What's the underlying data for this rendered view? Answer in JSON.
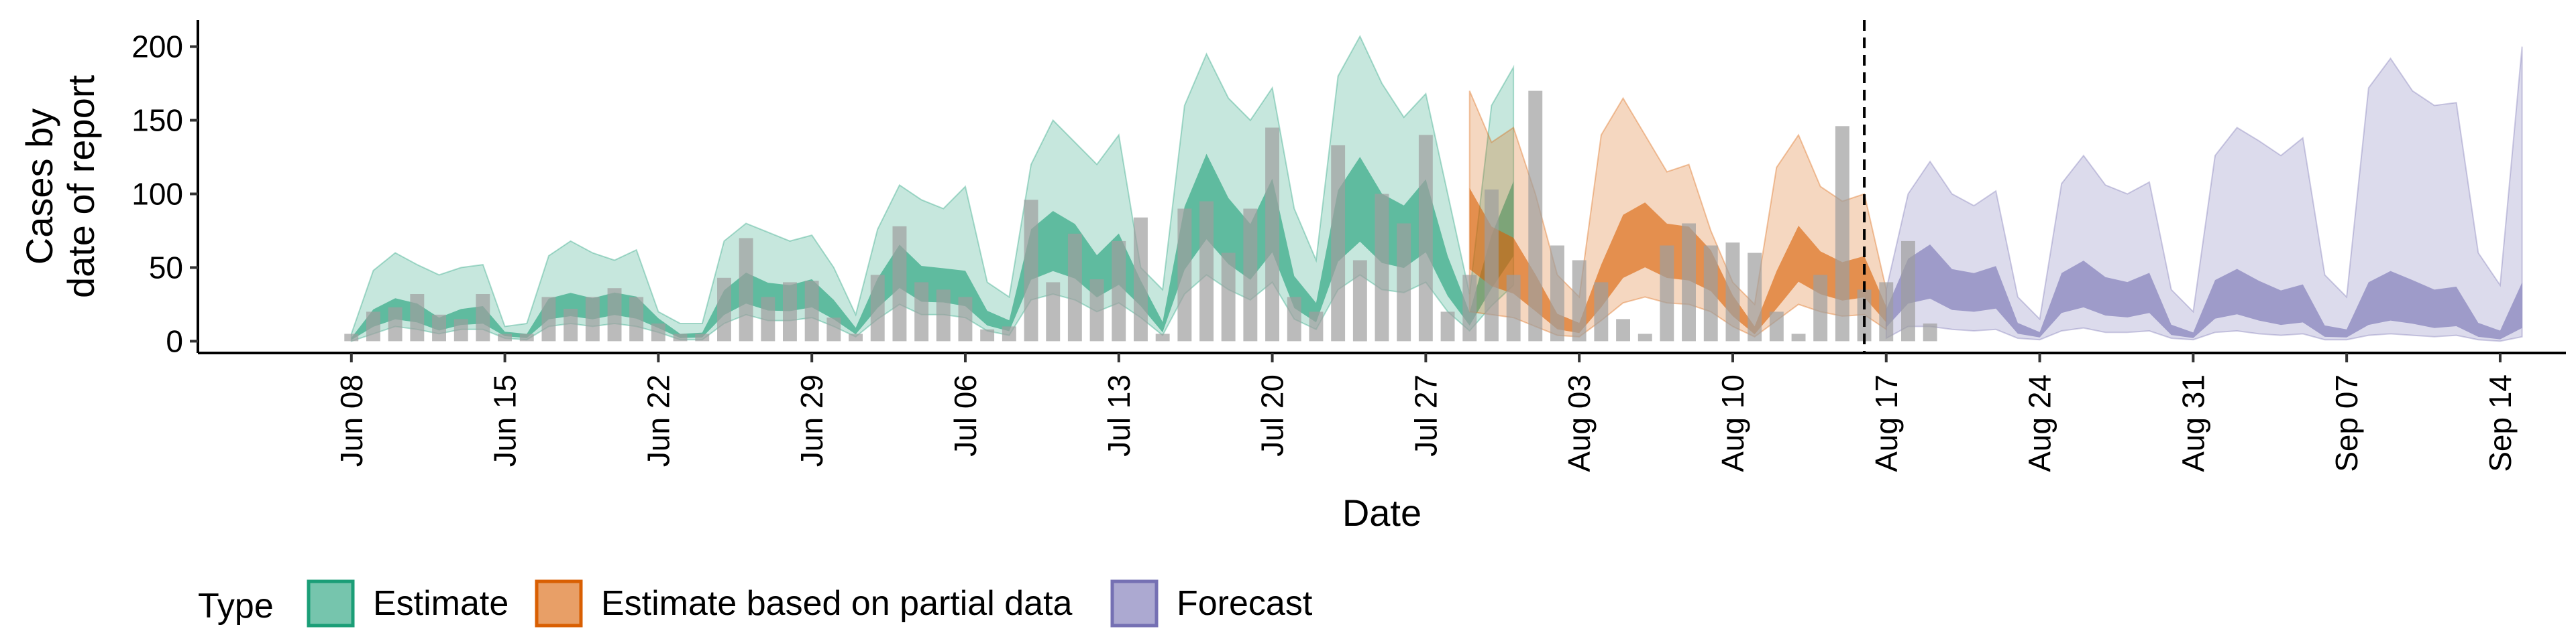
{
  "chart_data": {
    "type": "area",
    "xlabel": "Date",
    "ylabel": [
      "Cases by",
      "date of report"
    ],
    "x_range": [
      "2020-06-01",
      "2020-09-17"
    ],
    "ylim": [
      -8,
      218
    ],
    "y_ticks": [
      0,
      50,
      100,
      150,
      200
    ],
    "x_ticks": [
      {
        "date": "2020-06-08",
        "label": "Jun 08"
      },
      {
        "date": "2020-06-15",
        "label": "Jun 15"
      },
      {
        "date": "2020-06-22",
        "label": "Jun 22"
      },
      {
        "date": "2020-06-29",
        "label": "Jun 29"
      },
      {
        "date": "2020-07-06",
        "label": "Jul 06"
      },
      {
        "date": "2020-07-13",
        "label": "Jul 13"
      },
      {
        "date": "2020-07-20",
        "label": "Jul 20"
      },
      {
        "date": "2020-07-27",
        "label": "Jul 27"
      },
      {
        "date": "2020-08-03",
        "label": "Aug 03"
      },
      {
        "date": "2020-08-10",
        "label": "Aug 10"
      },
      {
        "date": "2020-08-17",
        "label": "Aug 17"
      },
      {
        "date": "2020-08-24",
        "label": "Aug 24"
      },
      {
        "date": "2020-08-31",
        "label": "Aug 31"
      },
      {
        "date": "2020-09-07",
        "label": "Sep 07"
      },
      {
        "date": "2020-09-14",
        "label": "Sep 14"
      }
    ],
    "forecast_line_date": "2020-08-16",
    "grid": false,
    "legend_position": "bottom-left",
    "legend_title": "Type",
    "reported": {
      "start": "2020-06-08",
      "values": [
        5,
        20,
        23,
        32,
        18,
        15,
        32,
        5,
        5,
        30,
        22,
        30,
        36,
        30,
        12,
        5,
        5,
        43,
        70,
        30,
        40,
        41,
        16,
        5,
        45,
        78,
        40,
        35,
        30,
        8,
        10,
        96,
        40,
        73,
        42,
        68,
        84,
        5,
        90,
        95,
        60,
        90,
        145,
        30,
        20,
        133,
        55,
        100,
        80,
        140,
        20,
        45,
        103,
        45,
        170,
        65,
        55,
        40,
        15,
        5,
        65,
        80,
        65,
        67,
        60,
        20,
        5,
        45,
        146,
        35,
        40,
        68,
        12
      ]
    },
    "series": [
      {
        "name": "Estimate",
        "color": "#1B9E77",
        "start": "2020-06-08",
        "median": [
          2,
          18,
          25,
          22,
          12,
          18,
          20,
          6,
          4,
          25,
          28,
          25,
          30,
          26,
          15,
          4,
          5,
          30,
          42,
          35,
          34,
          38,
          25,
          8,
          38,
          60,
          45,
          44,
          40,
          18,
          12,
          70,
          80,
          72,
          50,
          64,
          40,
          10,
          82,
          118,
          88,
          70,
          102,
          38,
          22,
          92,
          114,
          90,
          84,
          102,
          52,
          18,
          60,
          98
        ],
        "ci90_low": [
          0,
          5,
          10,
          8,
          5,
          8,
          8,
          2,
          1,
          10,
          12,
          10,
          12,
          10,
          6,
          1,
          1,
          12,
          18,
          14,
          14,
          16,
          10,
          3,
          15,
          25,
          18,
          18,
          16,
          7,
          4,
          28,
          32,
          28,
          20,
          26,
          16,
          4,
          32,
          45,
          35,
          28,
          40,
          15,
          8,
          35,
          45,
          35,
          33,
          40,
          20,
          7,
          24,
          38
        ],
        "ci90_high": [
          5,
          48,
          60,
          52,
          45,
          50,
          52,
          10,
          12,
          58,
          68,
          60,
          55,
          62,
          20,
          12,
          12,
          68,
          80,
          74,
          68,
          72,
          50,
          18,
          76,
          106,
          96,
          90,
          105,
          40,
          30,
          120,
          150,
          135,
          120,
          140,
          50,
          35,
          160,
          195,
          165,
          150,
          172,
          90,
          55,
          180,
          207,
          175,
          152,
          168,
          100,
          32,
          160,
          186
        ]
      },
      {
        "name": "Estimate based on partial data",
        "color": "#D95F02",
        "start": "2020-07-29",
        "median": [
          95,
          70,
          60,
          38,
          15,
          10,
          40,
          75,
          88,
          75,
          72,
          60,
          30,
          8,
          38,
          70,
          55,
          48,
          52,
          22
        ],
        "ci90_low": [
          20,
          18,
          16,
          10,
          4,
          3,
          14,
          26,
          30,
          26,
          25,
          20,
          10,
          3,
          14,
          25,
          20,
          17,
          18,
          8
        ],
        "ci90_high": [
          170,
          135,
          145,
          100,
          45,
          30,
          140,
          165,
          140,
          115,
          120,
          75,
          40,
          25,
          118,
          140,
          105,
          95,
          100,
          35
        ]
      },
      {
        "name": "Forecast",
        "color": "#7570B3",
        "start": "2020-08-17",
        "median": [
          20,
          50,
          58,
          42,
          40,
          44,
          10,
          5,
          38,
          45,
          35,
          32,
          38,
          8,
          4,
          30,
          36,
          28,
          22,
          25,
          6,
          5,
          22,
          28,
          24,
          18,
          20,
          6,
          3,
          18
        ],
        "ci90_low": [
          2,
          10,
          10,
          8,
          7,
          8,
          2,
          1,
          7,
          9,
          6,
          6,
          7,
          2,
          1,
          6,
          7,
          5,
          4,
          5,
          1,
          1,
          4,
          5,
          4,
          3,
          4,
          1,
          0,
          3
        ],
        "ci90_high": [
          35,
          100,
          122,
          100,
          92,
          102,
          30,
          15,
          107,
          126,
          106,
          100,
          108,
          35,
          20,
          126,
          145,
          136,
          126,
          138,
          45,
          30,
          172,
          192,
          170,
          160,
          162,
          60,
          38,
          200
        ]
      }
    ]
  }
}
